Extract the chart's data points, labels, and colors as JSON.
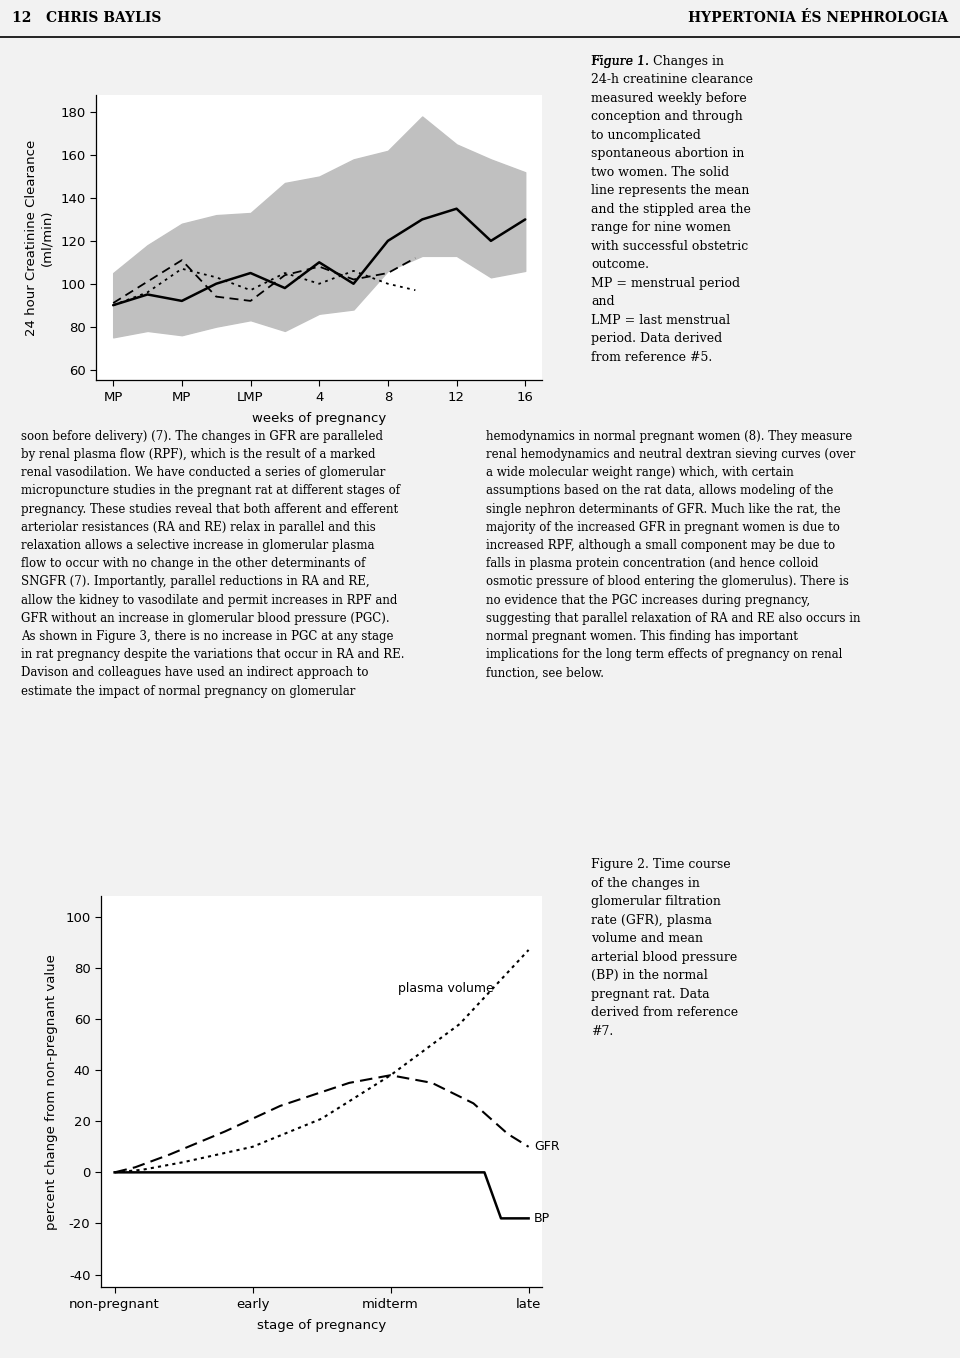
{
  "fig1": {
    "ylabel": "24 hour Creatinine Clearance\n(ml/min)",
    "xlabel": "weeks of pregnancy",
    "xtick_labels": [
      "MP",
      "MP",
      "LMP",
      "4",
      "8",
      "12",
      "16"
    ],
    "xtick_positions": [
      0,
      1,
      2,
      3,
      4,
      5,
      6
    ],
    "ylim": [
      55,
      188
    ],
    "yticks": [
      60,
      80,
      100,
      120,
      140,
      160,
      180
    ],
    "mean_x": [
      0,
      0.5,
      1,
      1.5,
      2,
      2.5,
      3,
      3.5,
      4,
      4.5,
      5,
      5.5,
      6
    ],
    "mean_y": [
      90,
      95,
      92,
      100,
      105,
      98,
      110,
      100,
      120,
      130,
      135,
      120,
      130
    ],
    "range_upper": [
      105,
      118,
      128,
      132,
      133,
      147,
      150,
      158,
      162,
      178,
      165,
      158,
      152
    ],
    "range_lower": [
      75,
      78,
      76,
      80,
      83,
      78,
      86,
      88,
      106,
      113,
      113,
      103,
      106
    ],
    "dashed1_x": [
      0,
      0.5,
      1,
      1.5,
      2,
      2.5,
      3,
      3.5,
      4,
      4.4
    ],
    "dashed1_y": [
      91,
      101,
      111,
      94,
      92,
      104,
      108,
      102,
      105,
      112
    ],
    "dotted2_x": [
      0,
      0.5,
      1,
      1.5,
      2,
      2.5,
      3,
      3.5,
      4,
      4.4
    ],
    "dotted2_y": [
      90,
      96,
      107,
      103,
      97,
      105,
      100,
      106,
      100,
      97
    ],
    "range_color": "#c0c0c0",
    "bg_color": "#d8d8d8",
    "plot_bg_color": "#ffffff"
  },
  "fig2": {
    "ylabel": "percent change from non-pregnant value",
    "xlabel": "stage of pregnancy",
    "xtick_labels": [
      "non-pregnant",
      "early",
      "midterm",
      "late"
    ],
    "xtick_positions": [
      0,
      1,
      2,
      3
    ],
    "ylim": [
      -45,
      108
    ],
    "yticks": [
      -40,
      -20,
      0,
      20,
      40,
      60,
      80,
      100
    ],
    "pv_x": [
      0,
      0.2,
      0.5,
      1.0,
      1.5,
      2.0,
      2.5,
      3.0
    ],
    "pv_y": [
      0,
      1,
      4,
      10,
      21,
      38,
      58,
      87
    ],
    "gfr_x": [
      0,
      0.15,
      0.4,
      0.8,
      1.2,
      1.7,
      2.0,
      2.3,
      2.6,
      2.85,
      3.0
    ],
    "gfr_y": [
      0,
      2,
      7,
      16,
      26,
      35,
      38,
      35,
      27,
      15,
      10
    ],
    "bp_x": [
      0,
      1.5,
      2.5,
      2.68,
      2.8,
      3.0
    ],
    "bp_y": [
      0,
      0,
      0,
      0,
      -18,
      -18
    ],
    "label_plasma": "plasma volume",
    "label_gfr": "GFR",
    "label_bp": "BP",
    "bg_color": "#d8d8d8",
    "plot_bg_color": "#ffffff"
  },
  "page_header_left": "12   CHRIS BAYLIS",
  "page_header_right": "HYPERTONIA ÉS NEPHROLOGIA",
  "fig1_caption_italic": "Figure 1.",
  "fig1_caption_bold": " Changes in\n24-h creatinine clearance\nmeasured weekly before\nconception and through\nto uncomplicated\nspontaneous abortion in\ntwo women.",
  "fig1_caption_normal": " The solid\nline represents the mean\nand the stippled area the\nrange for nine women\nwith successful obstetric\noutcome.\nMP = menstrual period\nand\nLMP = last menstrual\nperiod. Data derived\nfrom reference #5.",
  "fig2_caption_italic": "Figure 2.",
  "fig2_caption_bold": " Time course\nof the changes in\nglomerular filtration\nrate (GFR), plasma\nvolume and mean\narterial blood pressure\n(BP) in the normal\npregnant rat.",
  "fig2_caption_normal": " Data\nderived from reference\n#7.",
  "col1_lines": [
    "soon before delivery) (7). The changes in GFR are paralleled",
    "by renal plasma flow (RPF), which is the result of a marked",
    "renal vasodilation. We have conducted a series of glomerular",
    "micropuncture studies in the pregnant rat at different stages of",
    "pregnancy. These studies reveal that both afferent and efferent",
    "arteriolar resistances (RA and RE) relax in parallel and this",
    "relaxation allows a selective increase in glomerular plasma",
    "flow to occur with no change in the other determinants of",
    "SNGFR (7). Importantly, parallel reductions in RA and RE,",
    "allow the kidney to vasodilate and permit increases in RPF and",
    "GFR without an increase in glomerular blood pressure (PGC).",
    "As shown in Figure 3, there is no increase in PGC at any stage",
    "in rat pregnancy despite the variations that occur in RA and RE.",
    "Davison and colleagues have used an indirect approach to",
    "estimate the impact of normal pregnancy on glomerular"
  ],
  "col2_lines": [
    "hemodynamics in normal pregnant women (8). They measure",
    "renal hemodynamics and neutral dextran sieving curves (over",
    "a wide molecular weight range) which, with certain",
    "assumptions based on the rat data, allows modeling of the",
    "single nephron determinants of GFR. Much like the rat, the",
    "majority of the increased GFR in pregnant women is due to",
    "increased RPF, although a small component may be due to",
    "falls in plasma protein concentration (and hence colloid",
    "osmotic pressure of blood entering the glomerulus). There is",
    "no evidence that the PGC increases during pregnancy,",
    "suggesting that parallel relaxation of RA and RE also occurs in",
    "normal pregnant women. This finding has important",
    "implications for the long term effects of pregnancy on renal",
    "function, see below."
  ]
}
